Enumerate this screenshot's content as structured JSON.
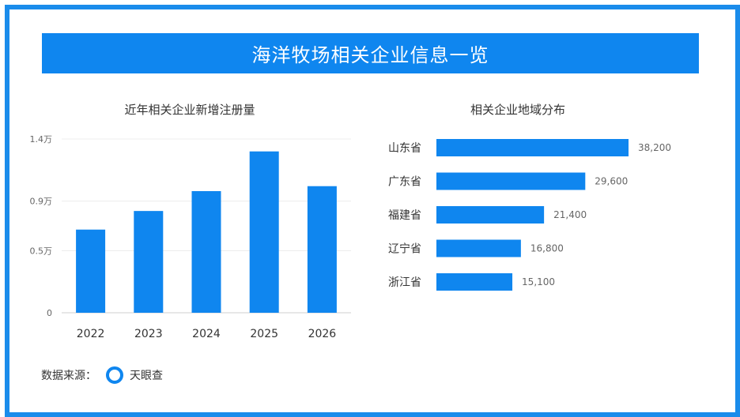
{
  "banner": {
    "title": "海洋牧场相关企业信息一览"
  },
  "colors": {
    "accent": "#0f86ef",
    "frame": "#1a8ceb"
  },
  "footer": {
    "source_label": "数据来源：",
    "source_name": "天眼查",
    "logo_icon": "tianyancha-logo-icon"
  },
  "chart_data": [
    {
      "type": "bar",
      "title": "近年相关企业新增注册量",
      "categories": [
        "2022",
        "2023",
        "2024",
        "2025",
        "2026"
      ],
      "values": [
        6700,
        8200,
        9800,
        13000,
        10200
      ],
      "yticks": [
        0,
        5000,
        9000,
        14000
      ],
      "ytick_labels": [
        "0",
        "0.5万",
        "0.9万",
        "1.4万"
      ],
      "ylim": [
        0,
        14000
      ],
      "grid": true
    },
    {
      "type": "bar",
      "orientation": "horizontal",
      "title": "相关企业地域分布",
      "categories": [
        "山东省",
        "广东省",
        "福建省",
        "辽宁省",
        "浙江省"
      ],
      "values": [
        38200,
        29600,
        21400,
        16800,
        15100
      ],
      "value_labels": [
        "38,200",
        "29,600",
        "21,400",
        "16,800",
        "15,100"
      ],
      "xlim": [
        0,
        38200
      ]
    }
  ]
}
